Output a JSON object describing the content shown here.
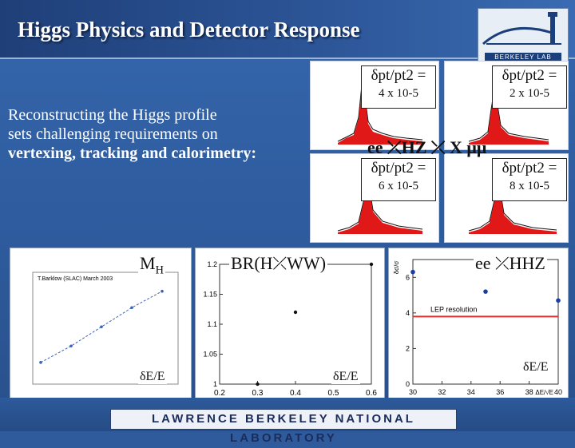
{
  "title": "Higgs Physics and Detector Response",
  "logo_text": "BERKELEY LAB",
  "footer": "LAWRENCE BERKELEY NATIONAL LABORATORY",
  "intro": {
    "line1": "Reconstructing the Higgs profile",
    "line2": "sets challenging requirements on",
    "line3": "vertexing, tracking and calorimetry:"
  },
  "resolutions": [
    {
      "label": "δpt/pt2 =",
      "value": "4 x 10-5"
    },
    {
      "label": "δpt/pt2 =",
      "value": "2 x 10-5"
    },
    {
      "label": "δpt/pt2 =",
      "value": "6 x 10-5"
    },
    {
      "label": "δpt/pt2 =",
      "value": "8 x 10-5"
    }
  ],
  "process_label": "ee ⤫HZ ⤫ X μμ",
  "plots": {
    "mh": {
      "label": "M",
      "sub": "H",
      "xlabel": "δE/E",
      "inset": "T.Barklow (SLAC) March 2003"
    },
    "br": {
      "label": "BR(H⤫WW)",
      "xlabel": "δE/E"
    },
    "hhz": {
      "label": "ee ⤫HHZ",
      "xlabel": "δE/E",
      "lep_label": "LEP resolution"
    }
  },
  "br_chart_data": {
    "type": "scatter",
    "x": [
      0.3,
      0.4,
      0.6
    ],
    "y": [
      1.0,
      1.12,
      1.2
    ],
    "xlim": [
      0.2,
      0.6
    ],
    "ylim": [
      1.0,
      1.2
    ],
    "xticks": [
      "0.2",
      "0.3",
      "0.4",
      "0.5",
      "0.6"
    ],
    "yticks": [
      "1",
      "1.05",
      "1.1",
      "1.15",
      "1.2"
    ]
  },
  "hhz_chart_data": {
    "type": "scatter",
    "x": [
      30,
      35,
      40
    ],
    "y": [
      6.3,
      5.2,
      4.7
    ],
    "xlim": [
      30,
      40
    ],
    "ylim": [
      0,
      7
    ],
    "xticks": [
      "30",
      "32",
      "34",
      "36",
      "38",
      "40"
    ],
    "yticks": [
      "0",
      "2",
      "4",
      "6"
    ],
    "xlabel": "ΔE/√E",
    "ylabel": "δσ/σ",
    "lep_level": 3.8,
    "lep_color": "#e03030"
  },
  "mh_chart_data": {
    "type": "line",
    "x": [
      0.2,
      0.3,
      0.4,
      0.5,
      0.6
    ],
    "y": [
      0.1,
      0.22,
      0.36,
      0.5,
      0.62
    ],
    "color": "#3b62b8"
  }
}
